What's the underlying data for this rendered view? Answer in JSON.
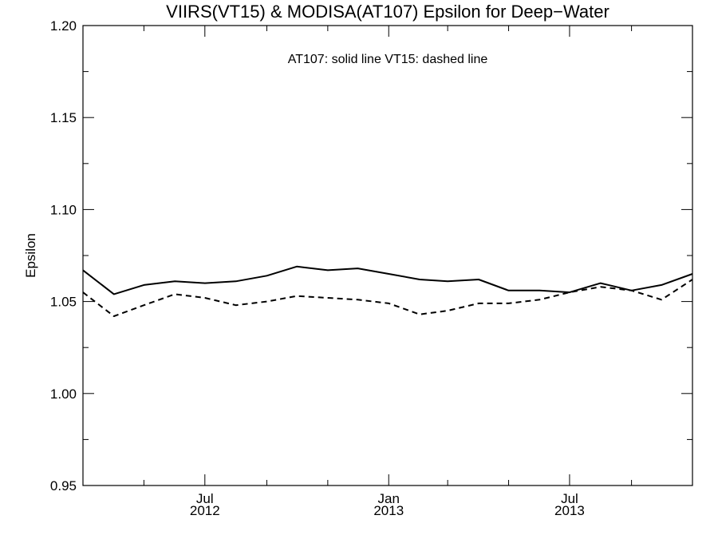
{
  "chart_data": {
    "type": "line",
    "title": "VIIRS(VT15) & MODISA(AT107)  Epsilon for Deep−Water",
    "annotation": "AT107: solid line   VT15: dashed line",
    "xlabel": "",
    "ylabel": "Epsilon",
    "xlim": [
      "2012-03-01",
      "2013-11-01"
    ],
    "ylim": [
      0.95,
      1.2
    ],
    "y_ticks": [
      "0.95",
      "1.00",
      "1.05",
      "1.10",
      "1.15",
      "1.20"
    ],
    "x_ticks": [
      {
        "date": "2012-07-01",
        "month": "Jul",
        "year": "2012"
      },
      {
        "date": "2013-01-01",
        "month": "Jan",
        "year": "2013"
      },
      {
        "date": "2013-07-01",
        "month": "Jul",
        "year": "2013"
      }
    ],
    "grid": false,
    "x": [
      "2012-03-01",
      "2012-04-01",
      "2012-05-01",
      "2012-06-01",
      "2012-07-01",
      "2012-08-01",
      "2012-09-01",
      "2012-10-01",
      "2012-11-01",
      "2012-12-01",
      "2013-01-01",
      "2013-02-01",
      "2013-03-01",
      "2013-04-01",
      "2013-05-01",
      "2013-06-01",
      "2013-07-01",
      "2013-08-01",
      "2013-09-01",
      "2013-10-01",
      "2013-11-01"
    ],
    "series": [
      {
        "style": "solid",
        "color": "#000000",
        "values": [
          1.067,
          1.054,
          1.059,
          1.061,
          1.06,
          1.061,
          1.064,
          1.069,
          1.067,
          1.068,
          1.065,
          1.062,
          1.061,
          1.062,
          1.056,
          1.056,
          1.055,
          1.06,
          1.056,
          1.059,
          1.065
        ]
      },
      {
        "style": "dashed",
        "color": "#000000",
        "values": [
          1.055,
          1.042,
          1.048,
          1.054,
          1.052,
          1.048,
          1.05,
          1.053,
          1.052,
          1.051,
          1.049,
          1.043,
          1.045,
          1.049,
          1.049,
          1.051,
          1.055,
          1.058,
          1.056,
          1.051,
          1.062
        ]
      }
    ]
  }
}
